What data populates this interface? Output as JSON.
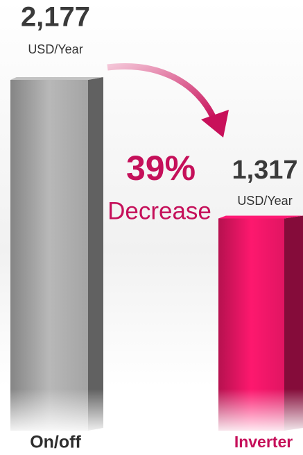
{
  "chart_data": {
    "type": "bar3d",
    "categories": [
      "On/off",
      "Inverter"
    ],
    "values": [
      2177,
      1317
    ],
    "value_labels": [
      "2,177",
      "1,317"
    ],
    "unit": "USD/Year",
    "colors": [
      "#9c9c9c",
      "#d6145d"
    ],
    "annotation": {
      "percent": "39%",
      "text": "Decrease"
    }
  }
}
